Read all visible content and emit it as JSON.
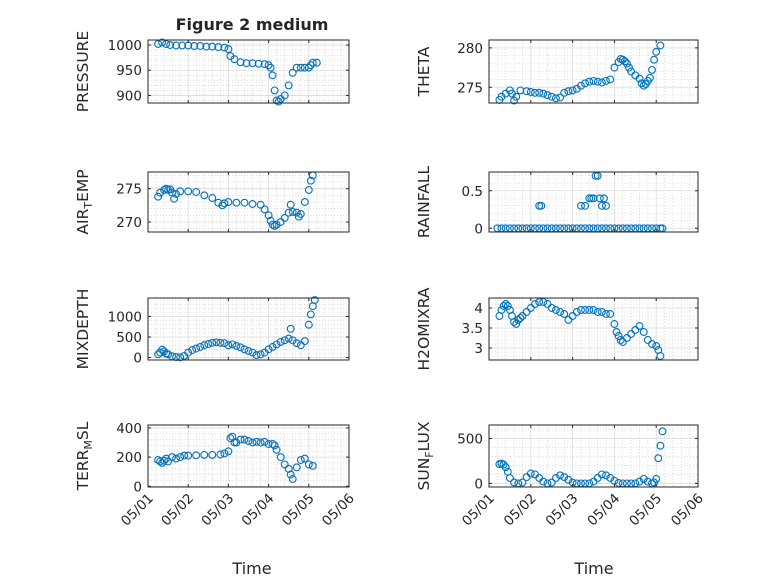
{
  "figure": {
    "title": "Figure 2 medium",
    "xlabel": "Time"
  },
  "colors": {
    "marker": "#0072BD",
    "axis": "#262626",
    "grid": "#c8c8c8"
  },
  "chart_data": [
    {
      "type": "scatter",
      "ylabel": "PRESSURE",
      "ylim": [
        885,
        1010
      ],
      "yticks": [
        {
          "v": 900,
          "label": "900"
        },
        {
          "v": 950,
          "label": "950"
        },
        {
          "v": 1000,
          "label": "1000"
        }
      ],
      "x": [
        0.25,
        0.35,
        0.45,
        0.55,
        0.7,
        0.85,
        1.0,
        1.15,
        1.3,
        1.45,
        1.6,
        1.75,
        1.9,
        2.0,
        2.05,
        2.15,
        2.3,
        2.45,
        2.6,
        2.75,
        2.9,
        3.0,
        3.05,
        3.1,
        3.15,
        3.2,
        3.25,
        3.3,
        3.4,
        3.5,
        3.6,
        3.7,
        3.8,
        3.9,
        4.0,
        4.05,
        4.1,
        4.2
      ],
      "y": [
        1002,
        1005,
        1002,
        1000,
        999,
        999,
        999,
        998,
        998,
        997,
        997,
        996,
        995,
        992,
        978,
        972,
        966,
        964,
        964,
        963,
        962,
        960,
        955,
        940,
        910,
        890,
        888,
        893,
        900,
        920,
        945,
        955,
        955,
        955,
        955,
        960,
        965,
        965
      ]
    },
    {
      "type": "scatter",
      "ylabel": "THETA",
      "ylim": [
        273,
        281
      ],
      "yticks": [
        {
          "v": 275,
          "label": "275"
        },
        {
          "v": 280,
          "label": "280"
        }
      ],
      "x": [
        0.25,
        0.3,
        0.4,
        0.5,
        0.55,
        0.6,
        0.65,
        0.75,
        0.9,
        1.0,
        1.1,
        1.2,
        1.3,
        1.4,
        1.5,
        1.6,
        1.7,
        1.8,
        1.9,
        2.0,
        2.1,
        2.2,
        2.3,
        2.4,
        2.5,
        2.6,
        2.7,
        2.8,
        2.9,
        3.0,
        3.1,
        3.15,
        3.2,
        3.25,
        3.3,
        3.35,
        3.4,
        3.5,
        3.6,
        3.65,
        3.7,
        3.75,
        3.8,
        3.85,
        3.9,
        3.95,
        4.0,
        4.1
      ],
      "y": [
        273.4,
        273.8,
        274.2,
        274.6,
        274.2,
        273.3,
        273.8,
        274.6,
        274.5,
        274.4,
        274.3,
        274.3,
        274.2,
        274.0,
        273.8,
        273.6,
        273.7,
        274.3,
        274.5,
        274.6,
        274.8,
        275.2,
        275.5,
        275.7,
        275.8,
        275.7,
        275.6,
        275.8,
        276.0,
        277.5,
        278.2,
        278.6,
        278.5,
        278.3,
        278.0,
        277.5,
        277.0,
        276.5,
        276.1,
        275.5,
        275.2,
        275.4,
        275.8,
        276.2,
        277.2,
        278.5,
        279.5,
        280.3
      ]
    },
    {
      "type": "scatter",
      "ylabel": "AIR_TEMP",
      "ylim": [
        268.5,
        277.5
      ],
      "yticks": [
        {
          "v": 270,
          "label": "270"
        },
        {
          "v": 275,
          "label": "275"
        }
      ],
      "x": [
        0.25,
        0.3,
        0.4,
        0.45,
        0.5,
        0.55,
        0.6,
        0.65,
        0.7,
        0.8,
        1.0,
        1.2,
        1.4,
        1.6,
        1.75,
        1.85,
        1.9,
        2.0,
        2.2,
        2.4,
        2.6,
        2.8,
        2.9,
        3.0,
        3.05,
        3.1,
        3.15,
        3.2,
        3.3,
        3.4,
        3.5,
        3.55,
        3.6,
        3.7,
        3.75,
        3.8,
        3.9,
        4.0,
        4.05,
        4.1
      ],
      "y": [
        273.8,
        274.4,
        274.8,
        275.0,
        274.8,
        274.9,
        274.4,
        273.5,
        274.2,
        274.6,
        274.6,
        274.5,
        274.0,
        273.6,
        272.9,
        272.5,
        272.8,
        273.0,
        272.9,
        272.9,
        272.7,
        272.6,
        271.9,
        271.0,
        270.2,
        269.6,
        269.4,
        269.6,
        270.0,
        270.6,
        271.4,
        272.6,
        271.5,
        271.4,
        270.8,
        271.2,
        273.0,
        274.8,
        276.2,
        277.0
      ]
    },
    {
      "type": "scatter",
      "ylabel": "RAINFALL",
      "ylim": [
        -0.05,
        0.75
      ],
      "yticks": [
        {
          "v": 0,
          "label": "0"
        },
        {
          "v": 0.5,
          "label": "0.5"
        }
      ],
      "x": [
        0.2,
        0.3,
        0.4,
        0.5,
        0.6,
        0.7,
        0.8,
        0.9,
        1.0,
        1.1,
        1.2,
        1.3,
        1.4,
        1.5,
        1.6,
        1.7,
        1.8,
        1.9,
        2.0,
        2.1,
        2.2,
        2.3,
        2.4,
        2.5,
        2.6,
        2.7,
        2.8,
        2.9,
        3.0,
        3.1,
        3.2,
        3.3,
        3.4,
        3.5,
        3.6,
        3.7,
        3.8,
        3.9,
        4.0,
        4.1,
        4.15,
        1.2,
        1.25,
        2.2,
        2.3,
        2.4,
        2.45,
        2.5,
        2.55,
        2.6,
        2.65,
        2.7,
        2.75,
        2.8
      ],
      "y": [
        0,
        0,
        0,
        0,
        0,
        0,
        0,
        0,
        0,
        0,
        0,
        0,
        0,
        0,
        0,
        0,
        0,
        0,
        0,
        0,
        0,
        0,
        0,
        0,
        0,
        0,
        0,
        0,
        0,
        0,
        0,
        0,
        0,
        0,
        0,
        0,
        0,
        0,
        0,
        0,
        0,
        0.3,
        0.3,
        0.3,
        0.3,
        0.4,
        0.4,
        0.4,
        0.7,
        0.7,
        0.4,
        0.3,
        0.4,
        0.3
      ]
    },
    {
      "type": "scatter",
      "ylabel": "MIXDEPTH",
      "ylim": [
        -60,
        1450
      ],
      "yticks": [
        {
          "v": 0,
          "label": "0"
        },
        {
          "v": 500,
          "label": "500"
        },
        {
          "v": 1000,
          "label": "1000"
        }
      ],
      "x": [
        0.25,
        0.3,
        0.35,
        0.4,
        0.45,
        0.5,
        0.6,
        0.7,
        0.8,
        0.9,
        1.0,
        1.1,
        1.2,
        1.3,
        1.4,
        1.5,
        1.6,
        1.7,
        1.8,
        1.9,
        2.0,
        2.1,
        2.2,
        2.3,
        2.4,
        2.5,
        2.6,
        2.7,
        2.8,
        2.9,
        3.0,
        3.1,
        3.2,
        3.3,
        3.4,
        3.5,
        3.55,
        3.6,
        3.7,
        3.8,
        3.9,
        4.0,
        4.05,
        4.1,
        4.15
      ],
      "y": [
        80,
        120,
        190,
        150,
        100,
        80,
        30,
        10,
        5,
        40,
        120,
        180,
        220,
        260,
        300,
        330,
        360,
        370,
        360,
        350,
        300,
        320,
        280,
        250,
        200,
        160,
        120,
        60,
        80,
        120,
        200,
        260,
        320,
        380,
        420,
        460,
        700,
        420,
        350,
        300,
        400,
        800,
        1050,
        1250,
        1400
      ]
    },
    {
      "type": "scatter",
      "ylabel": "H2OMIXRA",
      "ylim": [
        2.7,
        4.25
      ],
      "yticks": [
        {
          "v": 3,
          "label": "3"
        },
        {
          "v": 3.5,
          "label": "3.5"
        },
        {
          "v": 4,
          "label": "4"
        }
      ],
      "x": [
        0.25,
        0.3,
        0.35,
        0.4,
        0.45,
        0.5,
        0.55,
        0.6,
        0.65,
        0.7,
        0.75,
        0.8,
        0.9,
        1.0,
        1.1,
        1.2,
        1.3,
        1.4,
        1.5,
        1.6,
        1.7,
        1.8,
        1.9,
        2.0,
        2.1,
        2.2,
        2.3,
        2.4,
        2.5,
        2.6,
        2.7,
        2.8,
        2.9,
        3.0,
        3.05,
        3.1,
        3.15,
        3.2,
        3.3,
        3.4,
        3.5,
        3.6,
        3.7,
        3.8,
        3.9,
        4.0,
        4.05,
        4.1
      ],
      "y": [
        3.8,
        3.95,
        4.05,
        4.1,
        4.05,
        3.95,
        3.8,
        3.65,
        3.6,
        3.7,
        3.75,
        3.8,
        3.9,
        4.0,
        4.1,
        4.15,
        4.15,
        4.1,
        4.0,
        3.95,
        3.9,
        3.85,
        3.7,
        3.8,
        3.9,
        3.95,
        3.95,
        3.95,
        3.95,
        3.9,
        3.9,
        3.85,
        3.85,
        3.6,
        3.4,
        3.3,
        3.2,
        3.15,
        3.25,
        3.35,
        3.45,
        3.55,
        3.4,
        3.2,
        3.1,
        3.05,
        2.95,
        2.8
      ]
    },
    {
      "type": "scatter",
      "ylabel": "TERR_MSL",
      "ylim": [
        -5,
        420
      ],
      "yticks": [
        {
          "v": 0,
          "label": "0"
        },
        {
          "v": 200,
          "label": "200"
        },
        {
          "v": 400,
          "label": "400"
        }
      ],
      "x": [
        0.25,
        0.3,
        0.35,
        0.4,
        0.45,
        0.5,
        0.6,
        0.7,
        0.8,
        0.9,
        1.0,
        1.2,
        1.4,
        1.6,
        1.8,
        1.9,
        2.0,
        2.05,
        2.1,
        2.15,
        2.2,
        2.3,
        2.4,
        2.5,
        2.6,
        2.7,
        2.8,
        2.9,
        3.0,
        3.1,
        3.15,
        3.2,
        3.3,
        3.4,
        3.5,
        3.55,
        3.6,
        3.7,
        3.8,
        3.9,
        4.0,
        4.1
      ],
      "y": [
        180,
        170,
        160,
        175,
        190,
        170,
        200,
        190,
        200,
        210,
        210,
        212,
        215,
        215,
        218,
        225,
        240,
        330,
        340,
        300,
        300,
        320,
        320,
        310,
        300,
        305,
        300,
        305,
        290,
        290,
        280,
        250,
        200,
        150,
        120,
        80,
        50,
        130,
        180,
        190,
        150,
        140
      ]
    },
    {
      "type": "scatter",
      "ylabel": "SUN_FLUX",
      "ylim": [
        -40,
        650
      ],
      "yticks": [
        {
          "v": 0,
          "label": "0"
        },
        {
          "v": 500,
          "label": "500"
        }
      ],
      "x": [
        0.25,
        0.3,
        0.35,
        0.4,
        0.45,
        0.5,
        0.6,
        0.7,
        0.8,
        0.9,
        1.0,
        1.1,
        1.2,
        1.3,
        1.4,
        1.5,
        1.6,
        1.7,
        1.8,
        1.9,
        2.0,
        2.1,
        2.2,
        2.3,
        2.4,
        2.5,
        2.6,
        2.7,
        2.8,
        2.9,
        3.0,
        3.1,
        3.2,
        3.3,
        3.4,
        3.5,
        3.6,
        3.7,
        3.8,
        3.9,
        3.95,
        4.0,
        4.05,
        4.1,
        4.15
      ],
      "y": [
        215,
        220,
        210,
        180,
        130,
        60,
        10,
        0,
        10,
        70,
        110,
        100,
        60,
        20,
        0,
        10,
        60,
        90,
        70,
        40,
        10,
        0,
        0,
        0,
        0,
        20,
        60,
        100,
        90,
        60,
        30,
        5,
        0,
        0,
        0,
        0,
        20,
        50,
        20,
        0,
        10,
        50,
        280,
        420,
        580
      ]
    }
  ],
  "xaxis": {
    "lim": [
      0,
      5
    ],
    "ticks": [
      {
        "v": 0,
        "label": "05/01"
      },
      {
        "v": 1,
        "label": "05/02"
      },
      {
        "v": 2,
        "label": "05/03"
      },
      {
        "v": 3,
        "label": "05/04"
      },
      {
        "v": 4,
        "label": "05/05"
      },
      {
        "v": 5,
        "label": "05/06"
      }
    ]
  }
}
